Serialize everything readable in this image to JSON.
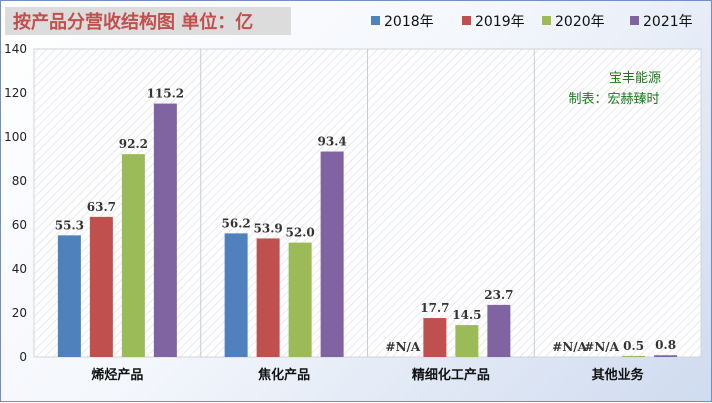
{
  "chart_data": {
    "type": "bar",
    "title": "按产品分营收结构图 单位：亿",
    "categories": [
      "烯烃产品",
      "焦化产品",
      "精细化工产品",
      "其他业务"
    ],
    "series": [
      {
        "name": "2018年",
        "color": "#4f81bd",
        "values": [
          55.3,
          56.2,
          null,
          null
        ],
        "labels": [
          "55.3",
          "56.2",
          "#N/A",
          "#N/A"
        ]
      },
      {
        "name": "2019年",
        "color": "#c0504d",
        "values": [
          63.7,
          53.9,
          17.7,
          null
        ],
        "labels": [
          "63.7",
          "53.9",
          "17.7",
          "#N/A"
        ]
      },
      {
        "name": "2020年",
        "color": "#9bbb59",
        "values": [
          92.2,
          52.0,
          14.5,
          0.5
        ],
        "labels": [
          "92.2",
          "52.0",
          "14.5",
          "0.5"
        ]
      },
      {
        "name": "2021年",
        "color": "#8064a2",
        "values": [
          115.2,
          93.4,
          23.7,
          0.8
        ],
        "labels": [
          "115.2",
          "93.4",
          "23.7",
          "0.8"
        ]
      }
    ],
    "ylim": [
      0,
      140
    ],
    "yticks": [
      0,
      20,
      40,
      60,
      80,
      100,
      120,
      140
    ],
    "grid": false,
    "legend_position": "top-right",
    "annotation": [
      "宝丰能源",
      "制表：宏赫臻时"
    ],
    "annotation_color": "#1a7a1a"
  }
}
